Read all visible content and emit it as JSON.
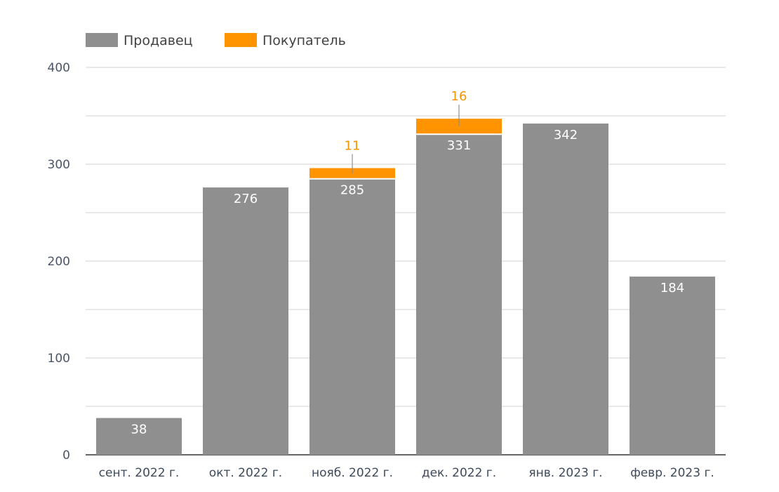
{
  "chart_data": {
    "type": "bar",
    "stacked": true,
    "categories": [
      "сент. 2022 г.",
      "окт. 2022 г.",
      "нояб. 2022 г.",
      "дек. 2022 г.",
      "янв. 2023 г.",
      "февр. 2023 г."
    ],
    "series": [
      {
        "name": "Продавец",
        "color": "#8f8f8f",
        "values": [
          38,
          276,
          285,
          331,
          342,
          184
        ]
      },
      {
        "name": "Покупатель",
        "color": "#ff9400",
        "values": [
          0,
          0,
          11,
          16,
          0,
          0
        ]
      }
    ],
    "ylim": [
      0,
      400
    ],
    "yticks": [
      0,
      100,
      200,
      300,
      400
    ],
    "grid": true,
    "legend": "top-left",
    "title": "",
    "xlabel": "",
    "ylabel": ""
  }
}
